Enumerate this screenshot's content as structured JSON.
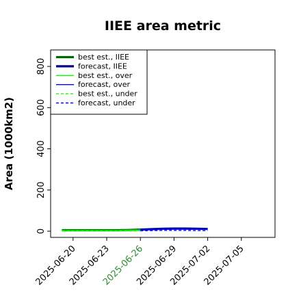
{
  "chart_data": {
    "type": "line",
    "title": "IIEE area metric",
    "ylabel": "Area (1000km2)",
    "xlabel": "",
    "ylim": [
      -30,
      880
    ],
    "xlim": [
      "2025-06-18",
      "2025-07-08"
    ],
    "yticks": [
      0,
      200,
      400,
      600,
      800
    ],
    "xticks": [
      {
        "date": "2025-06-20",
        "label": "2025-06-20",
        "color": "#000000"
      },
      {
        "date": "2025-06-23",
        "label": "2025-06-23",
        "color": "#000000"
      },
      {
        "date": "2025-06-26",
        "label": "2025-06-26",
        "color": "#2e8b2e"
      },
      {
        "date": "2025-06-29",
        "label": "2025-06-29",
        "color": "#000000"
      },
      {
        "date": "2025-07-02",
        "label": "2025-07-02",
        "color": "#000000"
      },
      {
        "date": "2025-07-05",
        "label": "2025-07-05",
        "color": "#000000"
      }
    ],
    "legend_position": "top-left",
    "grid": false,
    "series": [
      {
        "name": "best est., IIEE",
        "color": "#006400",
        "width": 3.2,
        "dash": "",
        "x": [
          "2025-06-19",
          "2025-06-20",
          "2025-06-21",
          "2025-06-22",
          "2025-06-23",
          "2025-06-24",
          "2025-06-25",
          "2025-06-26"
        ],
        "values": [
          5,
          5,
          5,
          5,
          5,
          5,
          6,
          8
        ]
      },
      {
        "name": "forecast, IIEE",
        "color": "#00008b",
        "width": 3.2,
        "dash": "",
        "x": [
          "2025-06-26",
          "2025-06-27",
          "2025-06-28",
          "2025-06-29",
          "2025-06-30",
          "2025-07-01",
          "2025-07-02"
        ],
        "values": [
          8,
          10,
          12,
          13,
          13,
          12,
          11
        ]
      },
      {
        "name": "best est., over",
        "color": "#00ff00",
        "width": 1.4,
        "dash": "",
        "x": [
          "2025-06-19",
          "2025-06-20",
          "2025-06-21",
          "2025-06-22",
          "2025-06-23",
          "2025-06-24",
          "2025-06-25",
          "2025-06-26"
        ],
        "values": [
          4,
          4,
          4,
          4,
          4,
          4,
          5,
          6
        ]
      },
      {
        "name": "forecast, over",
        "color": "#0000ff",
        "width": 1.4,
        "dash": "",
        "x": [
          "2025-06-26",
          "2025-06-27",
          "2025-06-28",
          "2025-06-29",
          "2025-06-30",
          "2025-07-01",
          "2025-07-02"
        ],
        "values": [
          6,
          8,
          9,
          10,
          10,
          9,
          9
        ]
      },
      {
        "name": "best est., under",
        "color": "#00ff00",
        "width": 1.4,
        "dash": "4,3",
        "x": [
          "2025-06-19",
          "2025-06-20",
          "2025-06-21",
          "2025-06-22",
          "2025-06-23",
          "2025-06-24",
          "2025-06-25",
          "2025-06-26"
        ],
        "values": [
          1,
          1,
          1,
          1,
          1,
          1,
          1,
          2
        ]
      },
      {
        "name": "forecast, under",
        "color": "#0000ff",
        "width": 1.4,
        "dash": "4,3",
        "x": [
          "2025-06-26",
          "2025-06-27",
          "2025-06-28",
          "2025-06-29",
          "2025-06-30",
          "2025-07-01",
          "2025-07-02"
        ],
        "values": [
          2,
          3,
          4,
          4,
          4,
          3,
          3
        ]
      }
    ]
  }
}
